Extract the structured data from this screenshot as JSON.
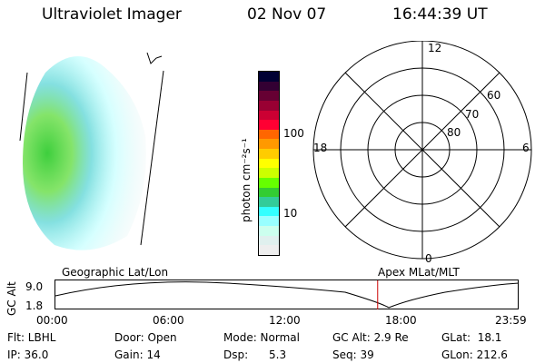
{
  "header": {
    "instrument": "Ultraviolet Imager",
    "date": "02 Nov 07",
    "time": "16:44:39 UT"
  },
  "colorbar": {
    "unit_label": "photon cm⁻²s⁻¹",
    "tick_labels": [
      "100",
      "10"
    ],
    "colors": [
      "#000033",
      "#330033",
      "#660033",
      "#990033",
      "#cc0033",
      "#ff0033",
      "#ff6600",
      "#ff9900",
      "#ffcc00",
      "#ffff00",
      "#ccff00",
      "#66ff00",
      "#33cc33",
      "#33cc99",
      "#33ffff",
      "#99ffff",
      "#ccffee",
      "#e0f0ee",
      "#eeeeee"
    ]
  },
  "polar_plot": {
    "mlt_labels": {
      "top": "12",
      "left": "18",
      "right": "6",
      "bottom": "0"
    },
    "lat_labels": [
      "80",
      "70",
      "60"
    ]
  },
  "timeline": {
    "left_label": "Geographic Lat/Lon",
    "right_label": "Apex MLat/MLT",
    "y_axis_label": "GC Alt",
    "y_ticks": [
      "9.0",
      "1.8"
    ],
    "x_ticks": [
      "00:00",
      "06:00",
      "12:00",
      "18:00",
      "23:59"
    ],
    "current_time_fraction": 0.697,
    "marker_color": "#cc0000"
  },
  "info": {
    "filter": "Flt: LBHL",
    "ip": "IP: 36.0",
    "door": "Door: Open",
    "gain": "Gain: 14",
    "mode": "Mode: Normal",
    "dsp": "Dsp:      5.3",
    "gc_alt": "GC Alt: 2.9 Re",
    "seq": "Seq: 39",
    "glat": "GLat:  18.1",
    "glon": "GLon: 212.6"
  }
}
